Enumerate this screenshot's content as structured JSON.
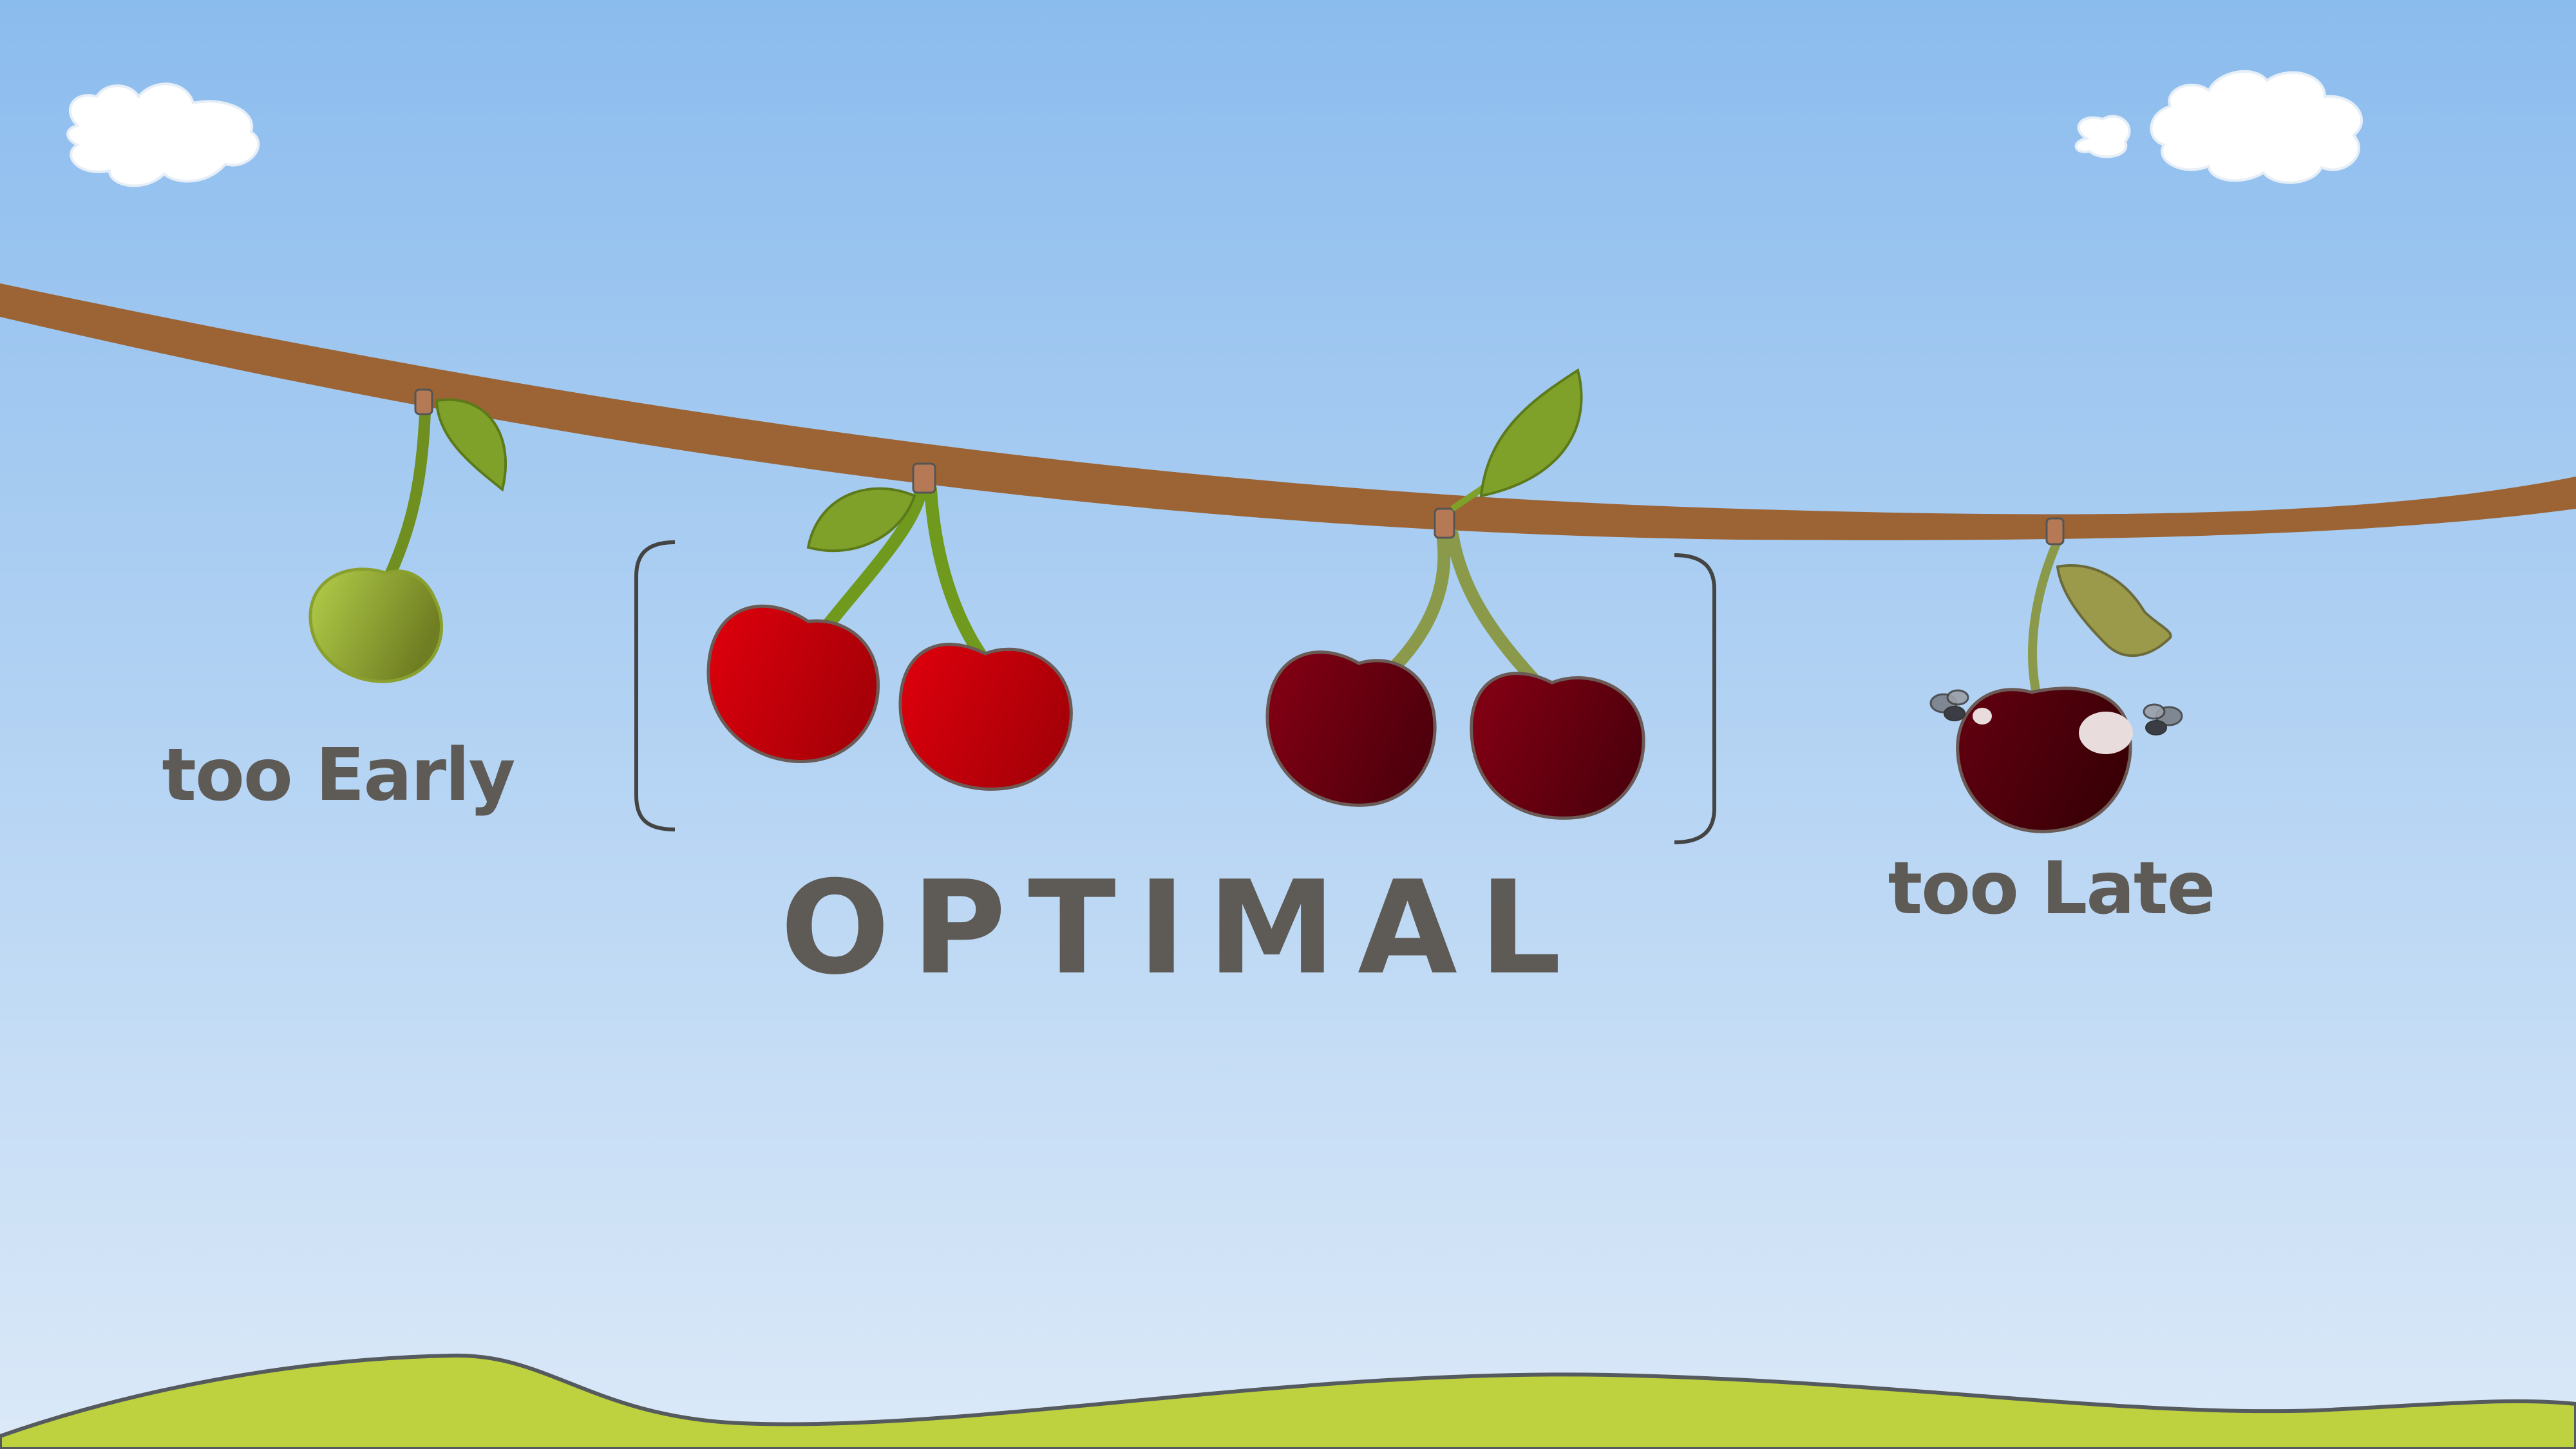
{
  "labels": {
    "early": "too Early",
    "optimal": "OPTIMAL",
    "late": "too Late"
  },
  "colors": {
    "sky_top": "#8bbcee",
    "sky_bottom": "#dbe9f8",
    "branch": "#9c6434",
    "grass": "#bed13e",
    "unripe_cherry": "#a8c34a",
    "ripe_cherry": "#d4000a",
    "dark_cherry": "#6e0010",
    "overripe_cherry": "#4a0008",
    "leaf": "#7fa12a",
    "label_text": "#5e5a55"
  }
}
